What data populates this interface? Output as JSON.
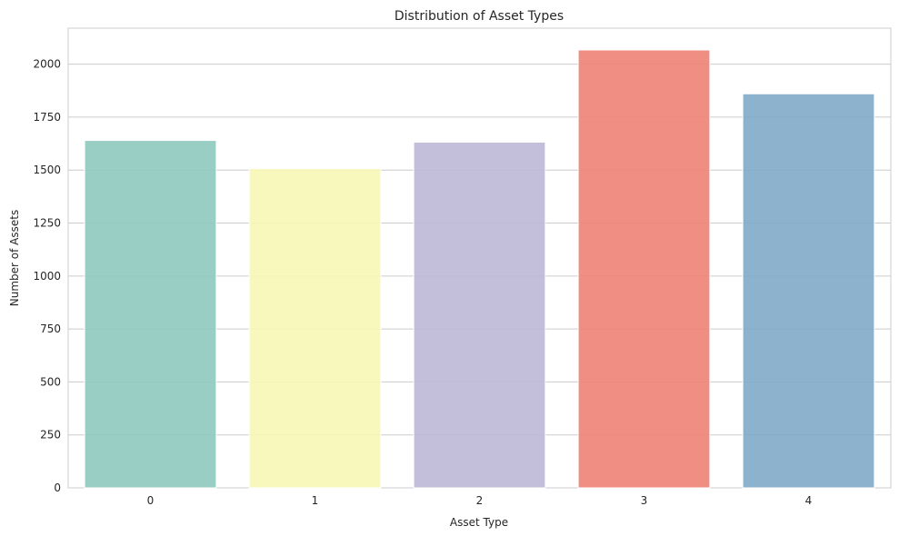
{
  "chart_data": {
    "type": "bar",
    "title": "Distribution of Asset Types",
    "xlabel": "Asset Type",
    "ylabel": "Number of Assets",
    "categories": [
      "0",
      "1",
      "2",
      "3",
      "4"
    ],
    "values": [
      1640,
      1507,
      1632,
      2067,
      1860
    ],
    "colors": [
      "#8dc9be",
      "#f7f7b6",
      "#bdb7d5",
      "#f08275",
      "#7faac9"
    ],
    "ylim": [
      0,
      2170
    ],
    "yticks": [
      0,
      250,
      500,
      750,
      1000,
      1250,
      1500,
      1750,
      2000
    ],
    "grid": "horizontal",
    "legend": "none"
  }
}
